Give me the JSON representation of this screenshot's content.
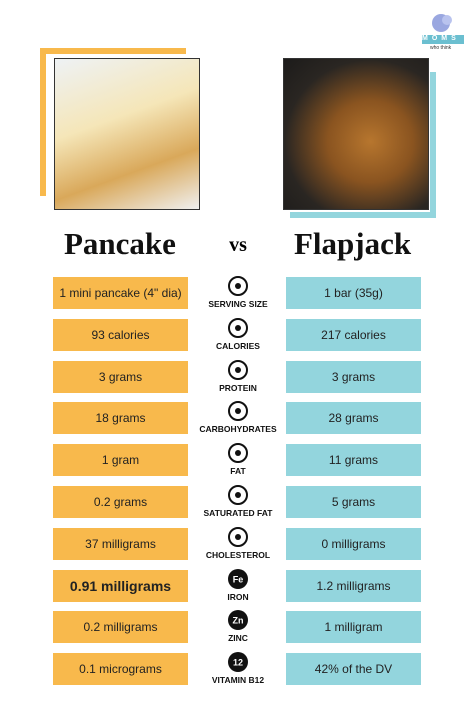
{
  "logo": {
    "letters": "MOMS",
    "tagline": "who think"
  },
  "left": {
    "title": "Pancake"
  },
  "vs": "vs",
  "right": {
    "title": "Flapjack"
  },
  "rows": [
    {
      "label": "SERVING SIZE",
      "left": "1 mini pancake (4\" dia)",
      "right": "1 bar (35g)"
    },
    {
      "label": "CALORIES",
      "left": "93 calories",
      "right": "217 calories"
    },
    {
      "label": "PROTEIN",
      "left": "3 grams",
      "right": "3 grams"
    },
    {
      "label": "CARBOHYDRATES",
      "left": "18 grams",
      "right": "28 grams"
    },
    {
      "label": "FAT",
      "left": "1 gram",
      "right": "11 grams"
    },
    {
      "label": "SATURATED FAT",
      "left": "0.2 grams",
      "right": "5 grams"
    },
    {
      "label": "CHOLESTEROL",
      "left": "37 milligrams",
      "right": "0 milligrams"
    },
    {
      "label": "IRON",
      "icon": "Fe",
      "left": "0.91 milligrams",
      "right": "1.2 milligrams"
    },
    {
      "label": "ZINC",
      "icon": "Zn",
      "left": "0.2 milligrams",
      "right": "1 milligram"
    },
    {
      "label": "VITAMIN B12",
      "icon": "12",
      "left": "0.1 micrograms",
      "right": "42% of the DV"
    }
  ]
}
